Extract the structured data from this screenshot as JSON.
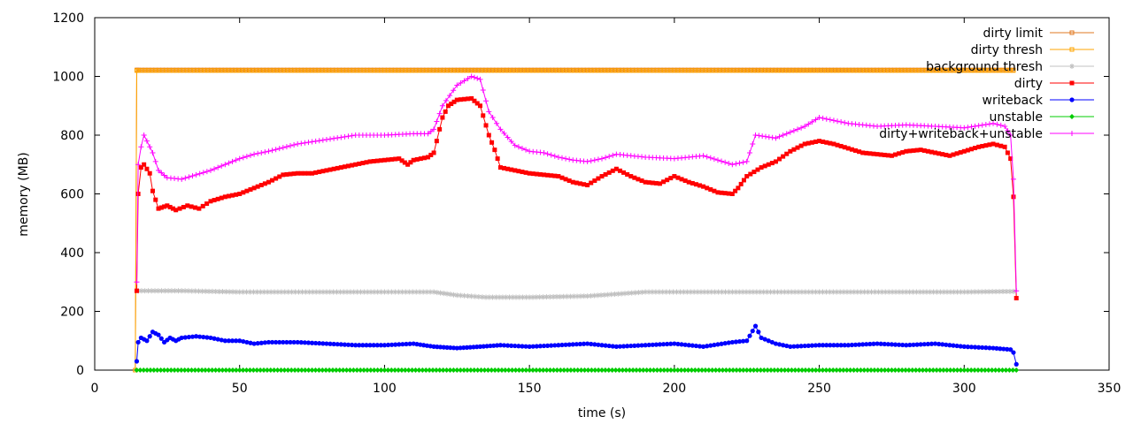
{
  "chart_data": {
    "type": "line",
    "title": "",
    "xlabel": "time (s)",
    "ylabel": "memory (MB)",
    "xlim": [
      0,
      350
    ],
    "ylim": [
      0,
      1200
    ],
    "xticks": [
      0,
      50,
      100,
      150,
      200,
      250,
      300,
      350
    ],
    "yticks": [
      0,
      200,
      400,
      600,
      800,
      1000,
      1200
    ],
    "xtick_labels": [
      "0",
      "50",
      "100",
      "150",
      "200",
      "250",
      "300",
      "350"
    ],
    "ytick_labels": [
      "0",
      "200",
      "400",
      "600",
      "800",
      "1000",
      "1200"
    ],
    "grid": false,
    "legend_position": "top-right",
    "series": [
      {
        "name": "dirty limit",
        "color": "#e07820",
        "marker": "square-open",
        "x": [
          14,
          14.5,
          15,
          100,
          200,
          300,
          317
        ],
        "y": [
          0,
          1022,
          1022,
          1022,
          1022,
          1022,
          1022
        ]
      },
      {
        "name": "dirty thresh",
        "color": "#ffa500",
        "marker": "square-open",
        "x": [
          14,
          14.5,
          15,
          50,
          100,
          150,
          200,
          250,
          300,
          317
        ],
        "y": [
          0,
          1020,
          1020,
          1020,
          1020,
          1020,
          1020,
          1020,
          1020,
          1020
        ]
      },
      {
        "name": "background thresh",
        "color": "#c0c0c0",
        "marker": "star",
        "x": [
          15,
          30,
          50,
          80,
          100,
          117,
          125,
          135,
          150,
          170,
          190,
          220,
          250,
          280,
          300,
          317
        ],
        "y": [
          270,
          270,
          266,
          266,
          266,
          266,
          255,
          248,
          248,
          252,
          266,
          266,
          266,
          266,
          266,
          268
        ]
      },
      {
        "name": "dirty",
        "color": "#ff0000",
        "marker": "square-filled",
        "x": [
          14.5,
          15,
          16,
          17,
          19,
          20,
          22,
          25,
          28,
          32,
          36,
          40,
          45,
          50,
          55,
          60,
          65,
          70,
          75,
          80,
          85,
          90,
          95,
          100,
          105,
          108,
          110,
          115,
          117,
          120,
          122,
          125,
          130,
          133,
          136,
          138,
          140,
          145,
          150,
          155,
          160,
          165,
          170,
          175,
          180,
          185,
          190,
          195,
          200,
          205,
          210,
          215,
          220,
          222,
          225,
          230,
          235,
          240,
          245,
          250,
          255,
          260,
          265,
          270,
          275,
          280,
          285,
          290,
          295,
          300,
          305,
          310,
          314,
          316,
          317,
          318
        ],
        "y": [
          270,
          600,
          690,
          700,
          670,
          610,
          550,
          560,
          545,
          560,
          550,
          575,
          590,
          600,
          620,
          640,
          665,
          670,
          670,
          680,
          690,
          700,
          710,
          715,
          720,
          700,
          715,
          725,
          740,
          860,
          900,
          920,
          925,
          900,
          800,
          750,
          690,
          680,
          670,
          665,
          660,
          640,
          630,
          660,
          685,
          660,
          640,
          635,
          660,
          640,
          625,
          605,
          600,
          620,
          660,
          690,
          710,
          745,
          770,
          780,
          770,
          755,
          740,
          735,
          730,
          745,
          750,
          740,
          730,
          745,
          760,
          770,
          760,
          720,
          590,
          245
        ]
      },
      {
        "name": "writeback",
        "color": "#0000ff",
        "marker": "circle-filled",
        "x": [
          14.5,
          15,
          16,
          18,
          20,
          22,
          24,
          26,
          28,
          30,
          35,
          40,
          45,
          50,
          55,
          60,
          70,
          80,
          90,
          100,
          110,
          117,
          125,
          133,
          140,
          150,
          160,
          170,
          180,
          190,
          200,
          210,
          220,
          225,
          228,
          230,
          235,
          240,
          250,
          260,
          270,
          280,
          290,
          300,
          310,
          316,
          317,
          318
        ],
        "y": [
          30,
          95,
          110,
          100,
          130,
          120,
          95,
          110,
          100,
          110,
          115,
          110,
          100,
          100,
          90,
          95,
          95,
          90,
          85,
          85,
          90,
          80,
          75,
          80,
          85,
          80,
          85,
          90,
          80,
          85,
          90,
          80,
          95,
          100,
          150,
          110,
          90,
          80,
          85,
          85,
          90,
          85,
          90,
          80,
          75,
          70,
          60,
          20
        ]
      },
      {
        "name": "unstable",
        "color": "#00cc00",
        "marker": "diamond-filled",
        "x": [
          14.5,
          50,
          100,
          150,
          200,
          250,
          300,
          318
        ],
        "y": [
          0,
          0,
          0,
          0,
          0,
          0,
          0,
          0
        ]
      },
      {
        "name": "dirty+writeback+unstable",
        "color": "#ff00ff",
        "marker": "plus",
        "x": [
          14.5,
          15,
          16,
          17,
          18,
          20,
          22,
          25,
          30,
          35,
          40,
          45,
          50,
          55,
          60,
          70,
          80,
          90,
          100,
          110,
          115,
          117,
          120,
          125,
          130,
          133,
          136,
          140,
          145,
          150,
          155,
          160,
          165,
          170,
          175,
          180,
          190,
          200,
          210,
          215,
          220,
          225,
          228,
          235,
          240,
          245,
          250,
          255,
          260,
          270,
          280,
          290,
          300,
          310,
          314,
          316,
          317,
          318
        ],
        "y": [
          300,
          700,
          760,
          800,
          780,
          740,
          680,
          655,
          650,
          665,
          680,
          700,
          720,
          735,
          745,
          770,
          785,
          800,
          800,
          805,
          805,
          820,
          900,
          970,
          1000,
          990,
          880,
          820,
          765,
          745,
          740,
          725,
          715,
          710,
          720,
          735,
          725,
          720,
          730,
          715,
          700,
          710,
          800,
          790,
          810,
          830,
          860,
          850,
          840,
          830,
          835,
          830,
          825,
          840,
          830,
          800,
          650,
          270
        ]
      }
    ]
  }
}
